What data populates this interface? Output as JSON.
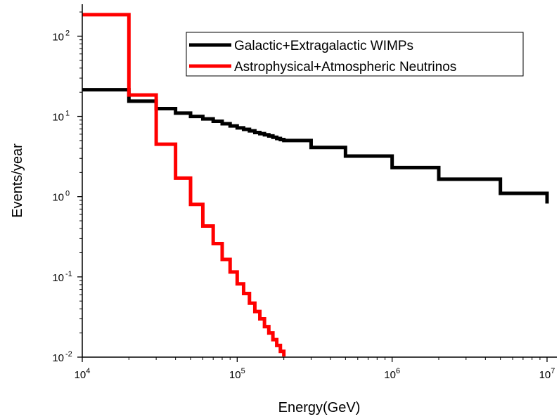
{
  "chart_data": {
    "type": "line",
    "xlabel": "Energy(GeV)",
    "ylabel": "Events/year",
    "xscale": "log",
    "yscale": "log",
    "xlim": [
      10000,
      10000000
    ],
    "ylim": [
      0.01,
      250
    ],
    "x_ticks": [
      {
        "base": "10",
        "exp": "4",
        "value": 10000
      },
      {
        "base": "10",
        "exp": "5",
        "value": 100000
      },
      {
        "base": "10",
        "exp": "6",
        "value": 1000000
      },
      {
        "base": "10",
        "exp": "7",
        "value": 10000000
      }
    ],
    "y_ticks": [
      {
        "base": "10",
        "exp": "-2",
        "value": 0.01
      },
      {
        "base": "10",
        "exp": "-1",
        "value": 0.1
      },
      {
        "base": "10",
        "exp": "0",
        "value": 1
      },
      {
        "base": "10",
        "exp": "1",
        "value": 10
      },
      {
        "base": "10",
        "exp": "2",
        "value": 100
      }
    ],
    "legend": {
      "position": "top-right"
    },
    "series": [
      {
        "name": "Galactic+Extragalactic WIMPs",
        "color": "#000000",
        "style": "step",
        "bin_width": 10000,
        "x": [
          10000,
          20000,
          30000,
          40000,
          50000,
          60000,
          70000,
          80000,
          90000,
          100000,
          110000,
          120000,
          130000,
          140000,
          150000,
          160000,
          170000,
          180000,
          190000,
          200000,
          300000,
          500000,
          1000000,
          2000000,
          5000000,
          10000000
        ],
        "y": [
          21.5,
          15.5,
          12.5,
          11.0,
          10.0,
          9.3,
          8.7,
          8.1,
          7.6,
          7.2,
          6.9,
          6.6,
          6.3,
          6.1,
          5.9,
          5.7,
          5.5,
          5.3,
          5.15,
          5.0,
          4.1,
          3.2,
          2.3,
          1.65,
          1.1,
          0.82
        ]
      },
      {
        "name": "Astrophysical+Atmospheric Neutrinos",
        "color": "#ff0000",
        "style": "step",
        "bin_width": 10000,
        "x": [
          10000,
          20000,
          30000,
          40000,
          50000,
          60000,
          70000,
          80000,
          90000,
          100000,
          110000,
          120000,
          130000,
          140000,
          150000,
          160000,
          170000,
          180000,
          190000,
          200000
        ],
        "y": [
          185,
          18.5,
          4.5,
          1.7,
          0.8,
          0.43,
          0.26,
          0.165,
          0.115,
          0.082,
          0.062,
          0.047,
          0.037,
          0.03,
          0.024,
          0.02,
          0.0165,
          0.014,
          0.0118,
          0.0102
        ]
      }
    ]
  }
}
